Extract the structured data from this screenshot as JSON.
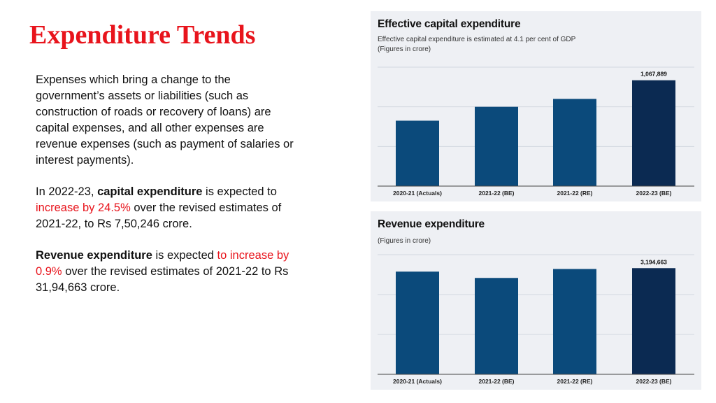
{
  "slide": {
    "title": "Expenditure Trends",
    "para1": "Expenses which bring a change to the government’s assets or liabilities (such as construction of roads or recovery of loans) are capital expenses, and all other expenses are revenue expenses (such as payment of salaries or interest payments).",
    "para2": {
      "t1": "In 2022-23, ",
      "b1": "capital expenditure",
      "t2": " is expected to ",
      "r1": "increase by 24.5%",
      "t3": " over the revised estimates of 2021-22, to Rs 7,50,246 crore."
    },
    "para3": {
      "b1": "Revenue expenditure",
      "t1": " is expected ",
      "r1": "to increase by 0.9%",
      "t2": " over the revised estimates of 2021-22 to Rs 31,94,663 crore."
    }
  },
  "colors": {
    "accent": "#e8141c",
    "bar": "#0b4a7b",
    "bar_highlight": "#0b2a52",
    "panel_bg": "#eef0f4"
  },
  "chart_data": [
    {
      "type": "bar",
      "title": "Effective capital expenditure",
      "subtitle": "Effective capital expenditure is estimated at 4.1 per cent of GDP",
      "units_note": "(Figures in crore)",
      "categories": [
        "2020-21 (Actuals)",
        "2021-22 (BE)",
        "2021-22 (RE)",
        "2022-23 (BE)"
      ],
      "values": [
        660000,
        800000,
        880000,
        1067889
      ],
      "labels": [
        "",
        "",
        "",
        "1,067,889"
      ],
      "ylim": [
        0,
        1200000
      ],
      "grid": true
    },
    {
      "type": "bar",
      "title": "Revenue expenditure",
      "units_note": "(Figures in crore)",
      "categories": [
        "2020-21 (Actuals)",
        "2021-22 (BE)",
        "2021-22 (RE)",
        "2022-23 (BE)"
      ],
      "values": [
        3090000,
        2900000,
        3170000,
        3194663
      ],
      "labels": [
        "",
        "",
        "",
        "3,194,663"
      ],
      "ylim": [
        0,
        3600000
      ],
      "grid": true
    }
  ]
}
